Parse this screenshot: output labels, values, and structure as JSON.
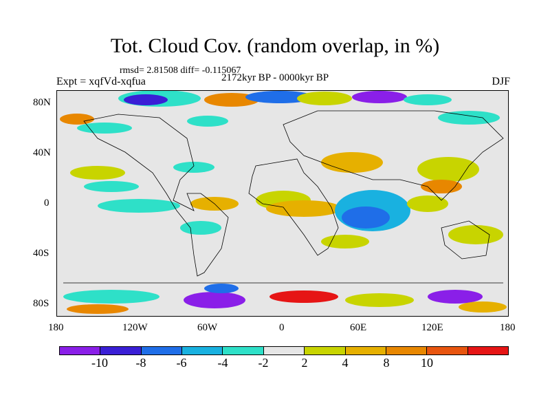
{
  "title": "Tot. Cloud Cov. (random overlap, in %)",
  "stats": "rmsd= 2.81508 diff= -0.115067",
  "experiment": "Expt = xqfVd-xqfua",
  "period": "2172kyr BP - 0000kyr BP",
  "season": "DJF",
  "lat_labels": [
    "80N",
    "40N",
    "0",
    "40S",
    "80S"
  ],
  "lon_labels": [
    "180",
    "120W",
    "60W",
    "0",
    "60E",
    "120E",
    "180"
  ],
  "colorbar": {
    "labels": [
      "-10",
      "-8",
      "-6",
      "-4",
      "-2",
      "2",
      "4",
      "8",
      "10"
    ],
    "colors": [
      "#8a1fe8",
      "#3a1fd6",
      "#1f6ee8",
      "#19b1e0",
      "#2ee0c8",
      "#e6e6e6",
      "#c8d400",
      "#e6b000",
      "#e88700",
      "#e8550f",
      "#e61515"
    ]
  }
}
